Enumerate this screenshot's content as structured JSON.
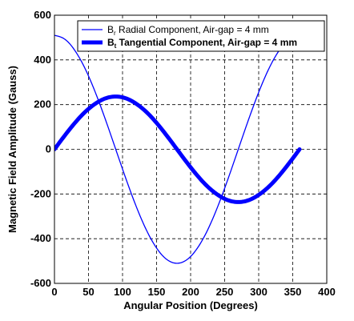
{
  "chart_data": {
    "type": "line",
    "xlabel": "Angular Position (Degrees)",
    "ylabel": "Magnetic Field Amplitude (Gauss)",
    "xlim": [
      0,
      400
    ],
    "ylim": [
      -600,
      600
    ],
    "x_ticks": [
      0,
      50,
      100,
      150,
      200,
      250,
      300,
      350,
      400
    ],
    "y_ticks": [
      -600,
      -400,
      -200,
      0,
      200,
      400,
      600
    ],
    "grid": true,
    "grid_style": "dashed",
    "legend_position": "top-right",
    "series": [
      {
        "name": "B  Radial Component, Air-gap = 4 mm",
        "legend_symbol": "B",
        "legend_subscript": "r",
        "legend_text": " Radial Component, Air-gap = 4 mm",
        "color": "#0000ff",
        "line_style": "thin",
        "x": [
          0,
          15,
          30,
          45,
          60,
          75,
          90,
          105,
          120,
          135,
          150,
          165,
          180,
          195,
          210,
          225,
          240,
          255,
          270,
          285,
          300,
          315,
          330,
          345,
          360
        ],
        "y": [
          510,
          493,
          442,
          361,
          255,
          132,
          0,
          -132,
          -255,
          -361,
          -442,
          -493,
          -510,
          -493,
          -442,
          -361,
          -255,
          -132,
          0,
          132,
          255,
          361,
          442,
          493,
          510
        ]
      },
      {
        "name": "B  Tangential Component, Air-gap = 4 mm",
        "legend_symbol": "B",
        "legend_subscript": "t",
        "legend_text": " Tangential Component, Air-gap = 4 mm",
        "color": "#0000ff",
        "line_style": "thick",
        "x": [
          0,
          15,
          30,
          45,
          60,
          75,
          90,
          105,
          120,
          135,
          150,
          165,
          180,
          195,
          210,
          225,
          240,
          255,
          270,
          285,
          300,
          315,
          330,
          345,
          360
        ],
        "y": [
          0,
          61,
          118,
          167,
          204,
          228,
          236,
          228,
          204,
          167,
          118,
          61,
          0,
          -61,
          -118,
          -167,
          -204,
          -228,
          -236,
          -228,
          -204,
          -167,
          -118,
          -61,
          0
        ]
      }
    ]
  }
}
